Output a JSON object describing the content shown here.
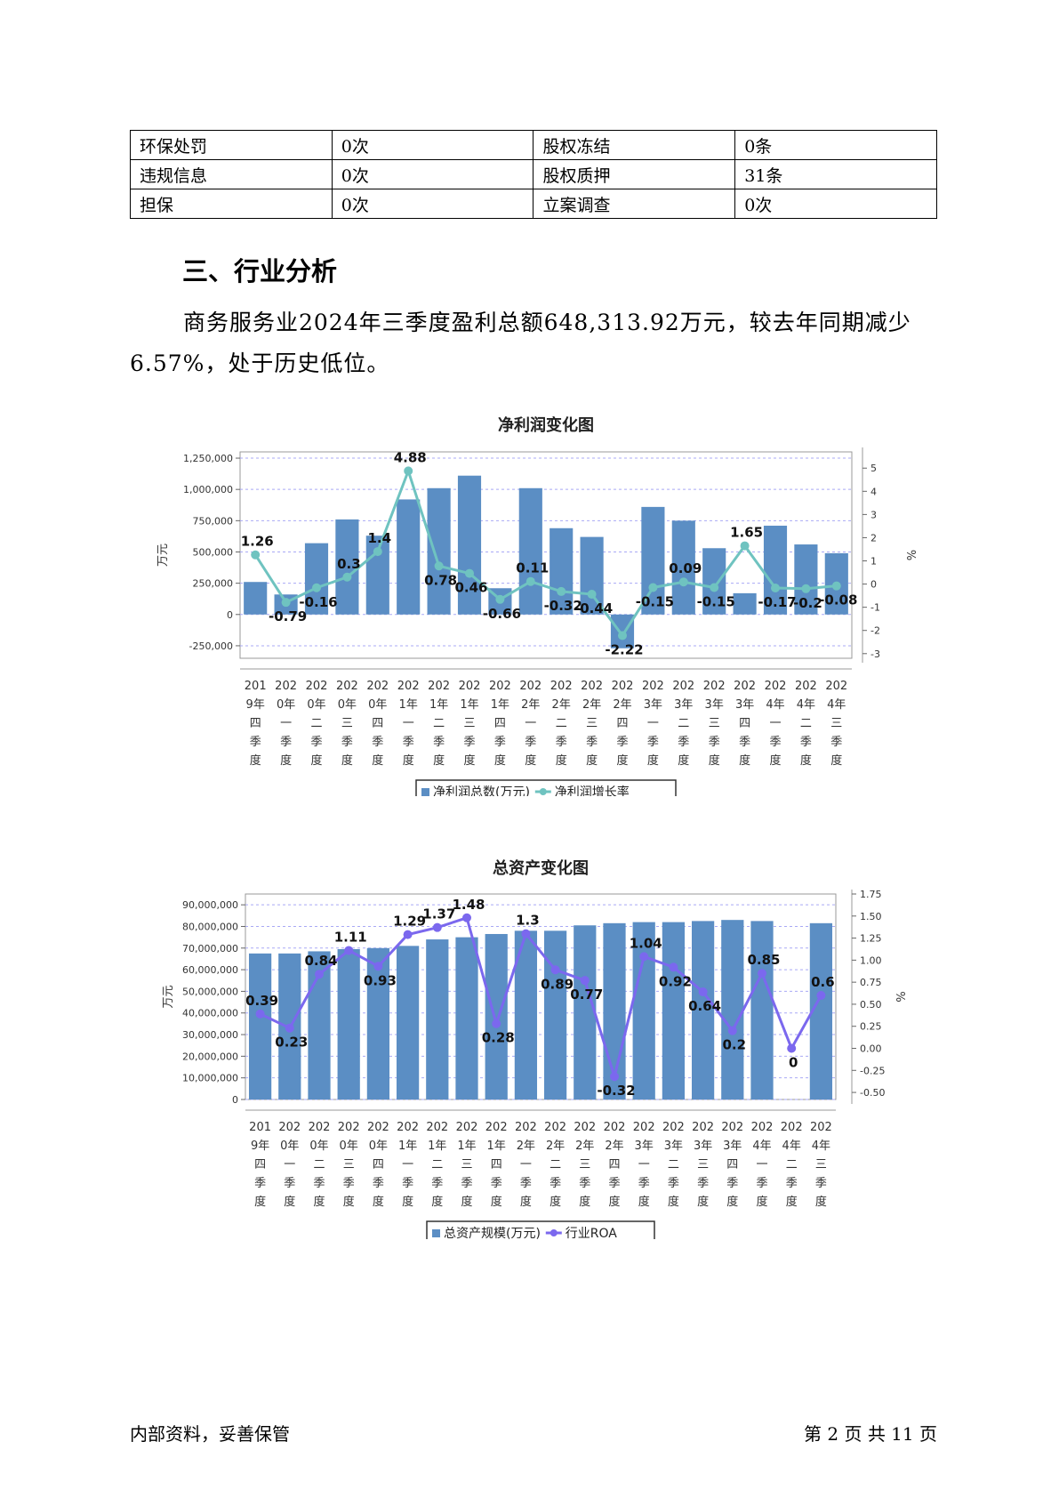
{
  "table": {
    "rows": [
      [
        "环保处罚",
        "0次",
        "股权冻结",
        "0条"
      ],
      [
        "违规信息",
        "0次",
        "股权质押",
        "31条"
      ],
      [
        "担保",
        "0次",
        "立案调查",
        "0次"
      ]
    ]
  },
  "section": {
    "title": "三、行业分析",
    "paragraph": "商务服务业2024年三季度盈利总额648,313.92万元，较去年同期减少6.57%，处于历史低位。"
  },
  "chart_data": [
    {
      "type": "bar+line",
      "title": "净利润变化图",
      "categories": [
        "2019年四季度",
        "2020年一季度",
        "2020年二季度",
        "2020年三季度",
        "2020年四季度",
        "2021年一季度",
        "2021年二季度",
        "2021年三季度",
        "2021年四季度",
        "2022年一季度",
        "2022年二季度",
        "2022年三季度",
        "2022年四季度",
        "2023年一季度",
        "2023年二季度",
        "2023年三季度",
        "2023年四季度",
        "2024年一季度",
        "2024年二季度",
        "2024年三季度"
      ],
      "category_lines": [
        [
          "201",
          "9年",
          "四",
          "季",
          "度"
        ],
        [
          "202",
          "0年",
          "一",
          "季",
          "度"
        ],
        [
          "202",
          "0年",
          "二",
          "季",
          "度"
        ],
        [
          "202",
          "0年",
          "三",
          "季",
          "度"
        ],
        [
          "202",
          "0年",
          "四",
          "季",
          "度"
        ],
        [
          "202",
          "1年",
          "一",
          "季",
          "度"
        ],
        [
          "202",
          "1年",
          "二",
          "季",
          "度"
        ],
        [
          "202",
          "1年",
          "三",
          "季",
          "度"
        ],
        [
          "202",
          "1年",
          "四",
          "季",
          "度"
        ],
        [
          "202",
          "2年",
          "一",
          "季",
          "度"
        ],
        [
          "202",
          "2年",
          "二",
          "季",
          "度"
        ],
        [
          "202",
          "2年",
          "三",
          "季",
          "度"
        ],
        [
          "202",
          "2年",
          "四",
          "季",
          "度"
        ],
        [
          "202",
          "3年",
          "一",
          "季",
          "度"
        ],
        [
          "202",
          "3年",
          "二",
          "季",
          "度"
        ],
        [
          "202",
          "3年",
          "三",
          "季",
          "度"
        ],
        [
          "202",
          "3年",
          "四",
          "季",
          "度"
        ],
        [
          "202",
          "4年",
          "一",
          "季",
          "度"
        ],
        [
          "202",
          "4年",
          "二",
          "季",
          "度"
        ],
        [
          "202",
          "4年",
          "三",
          "季",
          "度"
        ]
      ],
      "bar_series": {
        "name": "净利润总数(万元)",
        "color": "#5b8ec4",
        "values": [
          260000,
          160000,
          570000,
          760000,
          630000,
          920000,
          1010000,
          1110000,
          210000,
          1010000,
          690000,
          620000,
          -270000,
          860000,
          750000,
          530000,
          170000,
          710000,
          560000,
          490000
        ]
      },
      "line_series": {
        "name": "净利润增长率",
        "color": "#6fc3c0",
        "values": [
          1.26,
          -0.79,
          -0.16,
          0.3,
          1.4,
          4.88,
          0.78,
          0.46,
          -0.66,
          0.11,
          -0.32,
          -0.44,
          -2.22,
          -0.15,
          0.09,
          -0.15,
          1.65,
          -0.17,
          -0.2,
          -0.08
        ]
      },
      "ylabel": "万元",
      "y2label": "%",
      "ylim": [
        -350000,
        1300000
      ],
      "y_ticks": [
        -250000,
        0,
        250000,
        500000,
        750000,
        1000000,
        1250000
      ],
      "y_tick_labels": [
        "-250,000",
        "0",
        "250,000",
        "500,000",
        "750,000",
        "1,000,000",
        "1,250,000"
      ],
      "y2lim": [
        -3.2,
        5.7
      ],
      "y2_ticks": [
        -3,
        -2,
        -1,
        0,
        1,
        2,
        3,
        4,
        5
      ],
      "grid": true,
      "legend": "bottom"
    },
    {
      "type": "bar+line",
      "title": "总资产变化图",
      "categories": [
        "2019年四季度",
        "2020年一季度",
        "2020年二季度",
        "2020年三季度",
        "2020年四季度",
        "2021年一季度",
        "2021年二季度",
        "2021年三季度",
        "2021年四季度",
        "2022年一季度",
        "2022年二季度",
        "2022年三季度",
        "2022年四季度",
        "2023年一季度",
        "2023年二季度",
        "2023年三季度",
        "2023年四季度",
        "2024年一季度",
        "2024年二季度",
        "2024年三季度"
      ],
      "category_lines": [
        [
          "201",
          "9年",
          "四",
          "季",
          "度"
        ],
        [
          "202",
          "0年",
          "一",
          "季",
          "度"
        ],
        [
          "202",
          "0年",
          "二",
          "季",
          "度"
        ],
        [
          "202",
          "0年",
          "三",
          "季",
          "度"
        ],
        [
          "202",
          "0年",
          "四",
          "季",
          "度"
        ],
        [
          "202",
          "1年",
          "一",
          "季",
          "度"
        ],
        [
          "202",
          "1年",
          "二",
          "季",
          "度"
        ],
        [
          "202",
          "1年",
          "三",
          "季",
          "度"
        ],
        [
          "202",
          "1年",
          "四",
          "季",
          "度"
        ],
        [
          "202",
          "2年",
          "一",
          "季",
          "度"
        ],
        [
          "202",
          "2年",
          "二",
          "季",
          "度"
        ],
        [
          "202",
          "2年",
          "三",
          "季",
          "度"
        ],
        [
          "202",
          "2年",
          "四",
          "季",
          "度"
        ],
        [
          "202",
          "3年",
          "一",
          "季",
          "度"
        ],
        [
          "202",
          "3年",
          "二",
          "季",
          "度"
        ],
        [
          "202",
          "3年",
          "三",
          "季",
          "度"
        ],
        [
          "202",
          "3年",
          "四",
          "季",
          "度"
        ],
        [
          "202",
          "4年",
          "一",
          "季",
          "度"
        ],
        [
          "202",
          "4年",
          "二",
          "季",
          "度"
        ],
        [
          "202",
          "4年",
          "三",
          "季",
          "度"
        ]
      ],
      "bar_series": {
        "name": "总资产规模(万元)",
        "color": "#5b8ec4",
        "values": [
          67500000,
          67500000,
          68500000,
          69500000,
          70000000,
          71000000,
          74000000,
          75000000,
          76500000,
          78000000,
          78000000,
          80500000,
          81500000,
          82000000,
          82000000,
          82500000,
          83000000,
          82500000,
          0,
          81500000
        ]
      },
      "line_series": {
        "name": "行业ROA",
        "color": "#7b68ee",
        "values": [
          0.39,
          0.23,
          0.84,
          1.11,
          0.93,
          1.29,
          1.37,
          1.48,
          0.28,
          1.3,
          0.89,
          0.77,
          -0.32,
          1.04,
          0.92,
          0.64,
          0.2,
          0.85,
          0,
          0.6
        ]
      },
      "ylabel": "万元",
      "y2label": "%",
      "ylim": [
        0,
        95000000
      ],
      "y_ticks": [
        0,
        10000000,
        20000000,
        30000000,
        40000000,
        50000000,
        60000000,
        70000000,
        80000000,
        90000000
      ],
      "y_tick_labels": [
        "0",
        "10,000,000",
        "20,000,000",
        "30,000,000",
        "40,000,000",
        "50,000,000",
        "60,000,000",
        "70,000,000",
        "80,000,000",
        "90,000,000"
      ],
      "y2lim": [
        -0.58,
        1.75
      ],
      "y2_ticks": [
        -0.5,
        -0.25,
        0,
        0.25,
        0.5,
        0.75,
        1,
        1.25,
        1.5,
        1.75
      ],
      "y2_tick_labels": [
        "-0.50",
        "-0.25",
        "0.00",
        "0.25",
        "0.50",
        "0.75",
        "1.00",
        "1.25",
        "1.50",
        "1.75"
      ],
      "grid": true,
      "legend": "bottom"
    }
  ],
  "footer": {
    "left": "内部资料，妥善保管",
    "right": "第 2 页   共 11 页"
  }
}
